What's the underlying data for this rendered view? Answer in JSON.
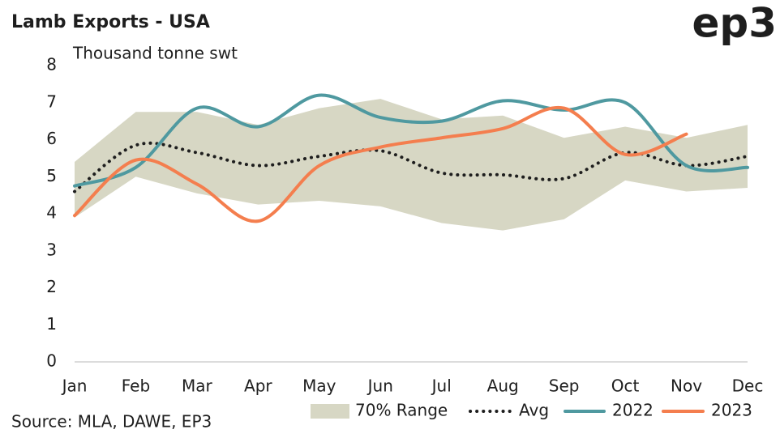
{
  "chart_data": {
    "type": "line",
    "title": "Lamb Exports - USA",
    "logo": "ep3",
    "y_label": "Thousand tonne swt",
    "source": "Source: MLA, DAWE, EP3",
    "categories": [
      "Jan",
      "Feb",
      "Mar",
      "Apr",
      "May",
      "Jun",
      "Jul",
      "Aug",
      "Sep",
      "Oct",
      "Nov",
      "Dec"
    ],
    "ylim": [
      0,
      8
    ],
    "yticks": [
      0,
      1,
      2,
      3,
      4,
      5,
      6,
      7,
      8
    ],
    "grid": false,
    "legend": "bottom",
    "range": {
      "name": "70% Range",
      "color": "#d7d7c4",
      "low": [
        3.9,
        5.0,
        4.55,
        4.25,
        4.35,
        4.2,
        3.75,
        3.55,
        3.85,
        4.9,
        4.6,
        4.7
      ],
      "high": [
        5.4,
        6.75,
        6.75,
        6.4,
        6.85,
        7.1,
        6.55,
        6.65,
        6.05,
        6.35,
        6.05,
        6.4
      ]
    },
    "series": [
      {
        "name": "Avg",
        "color": "#1e1e1e",
        "style": "dotted",
        "values": [
          4.6,
          5.85,
          5.65,
          5.3,
          5.55,
          5.7,
          5.1,
          5.05,
          4.95,
          5.65,
          5.3,
          5.55
        ]
      },
      {
        "name": "2022",
        "color": "#4f99a0",
        "style": "solid",
        "values": [
          4.75,
          5.25,
          6.85,
          6.35,
          7.2,
          6.6,
          6.5,
          7.05,
          6.8,
          7.0,
          5.3,
          5.25
        ]
      },
      {
        "name": "2023",
        "color": "#f47e4e",
        "style": "solid",
        "values": [
          3.95,
          5.45,
          4.8,
          3.8,
          5.3,
          5.8,
          6.05,
          6.3,
          6.85,
          5.6,
          6.15,
          null
        ]
      }
    ]
  }
}
